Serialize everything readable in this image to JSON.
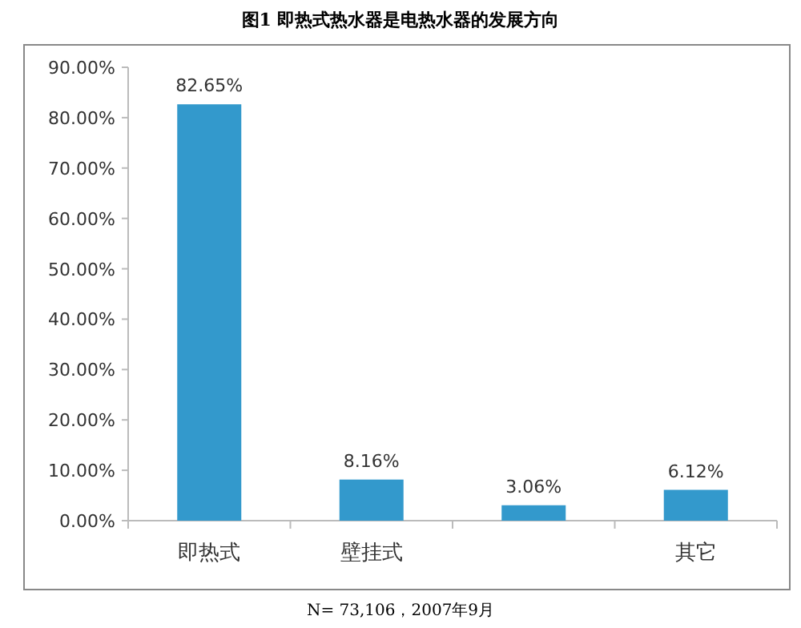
{
  "chart_data": {
    "type": "bar",
    "title": "图1 即热式热水器是电热水器的发展方向",
    "categories": [
      "即热式",
      "壁挂式",
      null,
      "其它"
    ],
    "values": [
      82.65,
      8.16,
      3.06,
      6.12
    ],
    "value_labels": [
      "82.65%",
      "8.16%",
      "3.06%",
      "6.12%"
    ],
    "color": "#3399cc",
    "ylim": [
      0,
      90
    ],
    "yticks": [
      {
        "value": 0,
        "label": "0.00%"
      },
      {
        "value": 10,
        "label": "10.00%"
      },
      {
        "value": 20,
        "label": "20.00%"
      },
      {
        "value": 30,
        "label": "30.00%"
      },
      {
        "value": 40,
        "label": "40.00%"
      },
      {
        "value": 50,
        "label": "50.00%"
      },
      {
        "value": 60,
        "label": "60.00%"
      },
      {
        "value": 70,
        "label": "70.00%"
      },
      {
        "value": 80,
        "label": "80.00%"
      },
      {
        "value": 90,
        "label": "90.00%"
      }
    ],
    "grid": false,
    "annotations": [
      "N= 73,106，2007年9月"
    ]
  }
}
